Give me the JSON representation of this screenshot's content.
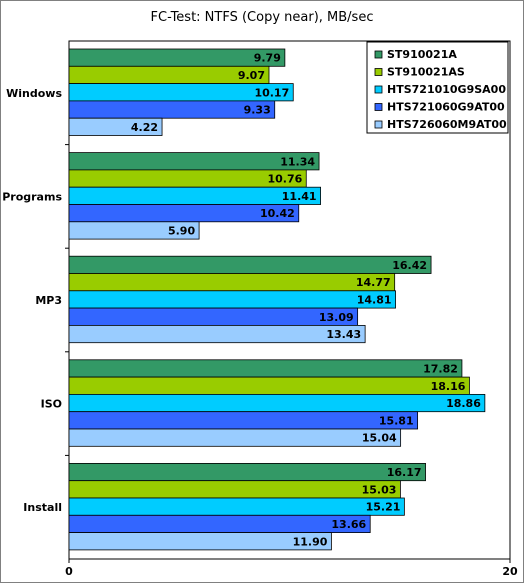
{
  "chart_data": {
    "type": "bar",
    "orientation": "horizontal",
    "title": "FC-Test: NTFS (Copy near), MB/sec",
    "categories": [
      "Windows",
      "Programs",
      "MP3",
      "ISO",
      "Install"
    ],
    "series": [
      {
        "name": "ST910021A",
        "color": "#339966",
        "values": [
          9.79,
          11.34,
          16.42,
          17.82,
          16.17
        ]
      },
      {
        "name": "ST910021AS",
        "color": "#99cc00",
        "values": [
          9.07,
          10.76,
          14.77,
          18.16,
          15.03
        ]
      },
      {
        "name": "HTS721010G9SA00",
        "color": "#00ccff",
        "values": [
          10.17,
          11.41,
          14.81,
          18.86,
          15.21
        ]
      },
      {
        "name": "HTS721060G9AT00",
        "color": "#3366ff",
        "values": [
          9.33,
          10.42,
          13.09,
          15.81,
          13.66
        ]
      },
      {
        "name": "HTS726060M9AT00",
        "color": "#99ccff",
        "values": [
          4.22,
          5.9,
          13.43,
          15.04,
          11.9
        ]
      }
    ],
    "xlim": [
      0,
      20
    ],
    "xticks": [
      "0",
      "20"
    ],
    "grid": false,
    "legend_position": "top-right",
    "value_labels": [
      "9.79",
      "9.07",
      "10.17",
      "9.33",
      "4.22",
      "11.34",
      "10.76",
      "11.41",
      "10.42",
      "5.90",
      "16.42",
      "14.77",
      "14.81",
      "13.09",
      "13.43",
      "17.82",
      "18.16",
      "18.86",
      "15.81",
      "15.04",
      "16.17",
      "15.03",
      "15.21",
      "13.66",
      "11.90"
    ]
  }
}
